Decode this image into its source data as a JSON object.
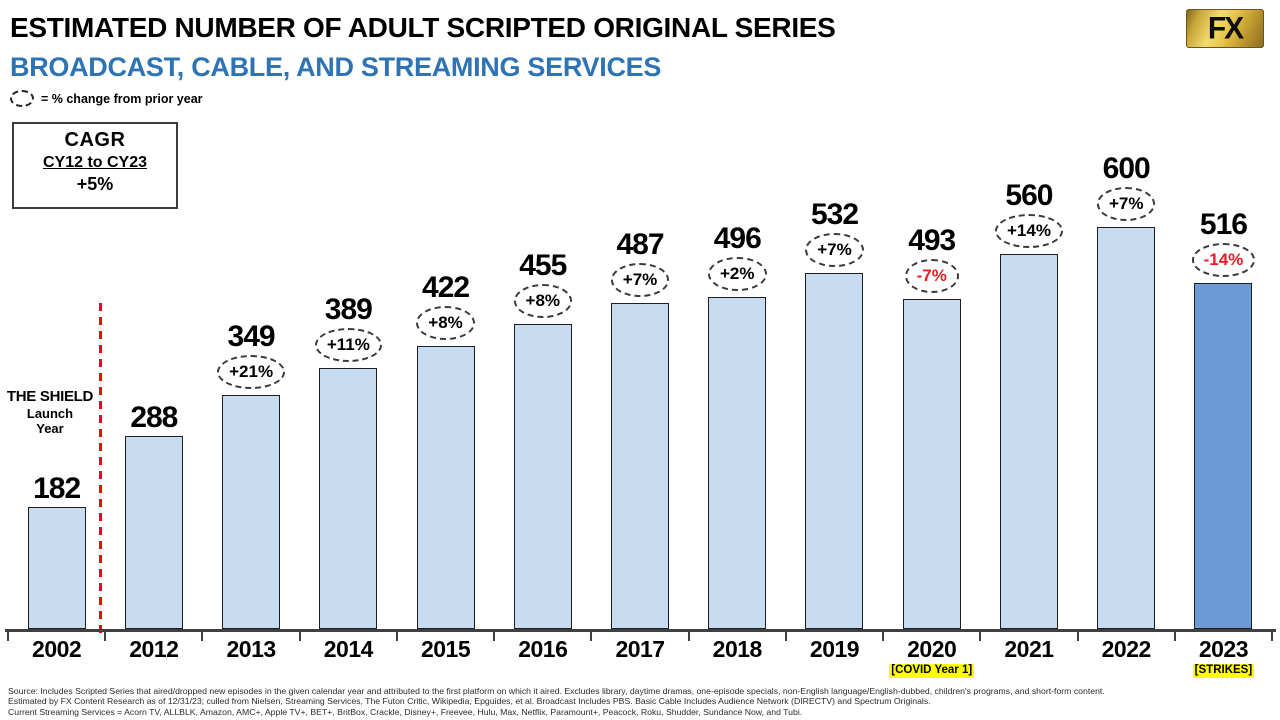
{
  "header": {
    "title": "ESTIMATED NUMBER OF ADULT SCRIPTED ORIGINAL SERIES",
    "subtitle": "BROADCAST, CABLE, AND STREAMING SERVICES",
    "legend_note": "= % change from prior year"
  },
  "cagr_box": {
    "label": "CAGR",
    "range": "CY12 to CY23",
    "value": "+5%"
  },
  "logo": {
    "text": "FX"
  },
  "annotations": {
    "shield_title": "THE SHIELD",
    "shield_line2": "Launch",
    "shield_line3": "Year"
  },
  "chart_data": {
    "type": "bar",
    "title": "Estimated Number of Adult Scripted Original Series - Broadcast, Cable, and Streaming Services",
    "xlabel": "",
    "ylabel": "",
    "ylim": [
      0,
      600
    ],
    "categories": [
      "2002",
      "2012",
      "2013",
      "2014",
      "2015",
      "2016",
      "2017",
      "2018",
      "2019",
      "2020",
      "2021",
      "2022",
      "2023"
    ],
    "values": [
      182,
      288,
      349,
      389,
      422,
      455,
      487,
      496,
      532,
      493,
      560,
      600,
      516
    ],
    "pct_change": [
      null,
      null,
      "+21%",
      "+11%",
      "+8%",
      "+8%",
      "+7%",
      "+2%",
      "+7%",
      "-7%",
      "+14%",
      "+7%",
      "-14%"
    ],
    "sublabels": [
      null,
      null,
      null,
      null,
      null,
      null,
      null,
      null,
      null,
      "[COVID Year 1]",
      null,
      null,
      "[STRIKES]"
    ],
    "colors": {
      "bar": "#C7DBF1",
      "bar_final": "#6D9BD6",
      "bar_border": "#1f1f1f",
      "negative_pct": "#EC1C24",
      "subtitle_blue": "#2E74B5",
      "highlight_yellow": "#FFFF00",
      "divider_red": "#FF0000"
    }
  },
  "footnotes": [
    "Source:  Includes Scripted Series that aired/dropped new episodes in the given calendar year and attributed to the first platform on which it aired. Excludes library, daytime dramas, one-episode specials, non-English language/English-dubbed, children's programs, and short-form content.",
    "Estimated by FX Content Research as of 12/31/23; culled from Nielsen, Streaming Services, The Futon Critic, Wikipedia, Epguides, et al.  Broadcast Includes PBS.  Basic Cable Includes Audience Network (DIRECTV) and Spectrum Originals.",
    "Current Streaming Services = Acorn TV, ALLBLK, Amazon, AMC+, Apple TV+, BET+, BritBox, Crackle, Disney+, Freevee, Hulu, Max, Netflix, Paramount+, Peacock, Roku, Shudder, Sundance Now, and Tubi."
  ]
}
